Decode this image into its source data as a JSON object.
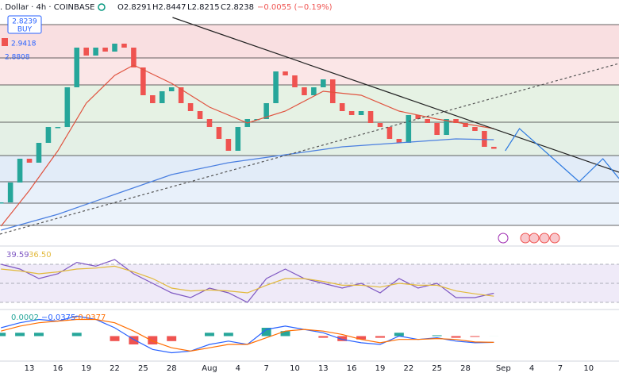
{
  "chart_data": [
    {
      "type": "candlestick",
      "title": ". Dollar · 4h · COINBASE",
      "ohlc_labels": [
        "O2.8291",
        "H2.8447",
        "L2.8215",
        "C2.8238",
        "−0.0055 (−0.19%)"
      ],
      "badges": [
        "2.8239",
        "BUY",
        "2.9418",
        "2.8808"
      ],
      "xlim": [
        9.9,
        75.2
      ],
      "ylim": [
        2.35,
        3.49
      ],
      "levels": [
        3.446,
        3.278,
        3.142,
        2.954,
        2.786,
        2.654,
        2.546,
        2.434
      ],
      "zone_colors": [
        "#f9dfe1",
        "#fbe6e7",
        "#e6f2e4",
        "#e4f0e6",
        "#e2ecf8",
        "#e8f0fa",
        "#ecf3fb"
      ],
      "up_color": "#26a69a",
      "down_color": "#ef5350",
      "series": [
        {
          "role": "price",
          "color": "#26a69a",
          "x": [
            10,
            11,
            12,
            13,
            14,
            15,
            16,
            17,
            18,
            19,
            20,
            21,
            22,
            23,
            24,
            25,
            26,
            27,
            28,
            29,
            30,
            31,
            32,
            33,
            34,
            35,
            36,
            37,
            38,
            39,
            40,
            41,
            42,
            43,
            44,
            45,
            46,
            47,
            48,
            49,
            50,
            51,
            52,
            53,
            54,
            55,
            56,
            57,
            58,
            59,
            60,
            61,
            62
          ],
          "values": [
            2.55,
            2.65,
            2.77,
            2.75,
            2.85,
            2.93,
            2.93,
            3.13,
            3.33,
            3.29,
            3.33,
            3.31,
            3.35,
            3.33,
            3.23,
            3.09,
            3.05,
            3.11,
            3.13,
            3.05,
            3.01,
            2.97,
            2.93,
            2.87,
            2.81,
            2.93,
            2.97,
            2.97,
            3.05,
            3.21,
            3.19,
            3.13,
            3.09,
            3.13,
            3.17,
            3.05,
            3.01,
            2.99,
            3.01,
            2.95,
            2.93,
            2.87,
            2.85,
            2.99,
            2.97,
            2.95,
            2.89,
            2.97,
            2.95,
            2.93,
            2.91,
            2.83,
            2.82
          ]
        },
        {
          "role": "line",
          "color": "#e0533f",
          "dash": "",
          "x": [
            10,
            13,
            16,
            19,
            22,
            24,
            28,
            32,
            36,
            40,
            44,
            48,
            52,
            56,
            60,
            62
          ],
          "values": [
            2.43,
            2.61,
            2.81,
            3.05,
            3.19,
            3.242,
            3.15,
            3.03,
            2.95,
            3.01,
            3.11,
            3.09,
            3.01,
            2.97,
            2.938,
            2.922
          ]
        },
        {
          "role": "line",
          "color": "#4a7fe0",
          "dash": "",
          "x": [
            10,
            16,
            22,
            28,
            34,
            40,
            46,
            52,
            58,
            62
          ],
          "values": [
            2.41,
            2.49,
            2.59,
            2.69,
            2.75,
            2.79,
            2.83,
            2.85,
            2.87,
            2.866
          ]
        },
        {
          "role": "line",
          "color": "#222222",
          "dash": "",
          "x": [
            28.1,
            75.2
          ],
          "values": [
            3.482,
            2.702
          ]
        },
        {
          "role": "line",
          "color": "#555555",
          "dash": "3 3",
          "x": [
            9.9,
            75.2
          ],
          "values": [
            2.39,
            3.25
          ]
        },
        {
          "role": "line",
          "color": "#2f7be0",
          "dash": "",
          "x": [
            63.2,
            64.7,
            71.0,
            73.5,
            75.2
          ],
          "values": [
            2.81,
            2.922,
            2.654,
            2.77,
            2.67
          ]
        }
      ]
    },
    {
      "type": "line",
      "legend_labels": [
        "39.59",
        "36.50"
      ],
      "xlim": [
        9.9,
        75.2
      ],
      "ylim": [
        22.5,
        87.5
      ],
      "bands": [
        70,
        50,
        30
      ],
      "band_fill": "#efeaf8",
      "x": [
        10,
        12,
        14,
        16,
        18,
        20,
        22,
        24,
        26,
        28,
        30,
        32,
        34,
        36,
        38,
        40,
        42,
        44,
        46,
        48,
        50,
        52,
        54,
        56,
        58,
        60,
        62
      ],
      "series": [
        {
          "color": "#7e57c2",
          "values": [
            70,
            65,
            55,
            60,
            72,
            68,
            75,
            60,
            50,
            40,
            35,
            45,
            40,
            30,
            55,
            65,
            55,
            50,
            45,
            50,
            40,
            55,
            45,
            50,
            35,
            35,
            39.59
          ]
        },
        {
          "color": "#e2b93b",
          "values": [
            65,
            63,
            60,
            62,
            65,
            66,
            68,
            62,
            55,
            45,
            42,
            43,
            42,
            40,
            48,
            55,
            55,
            52,
            48,
            48,
            46,
            50,
            48,
            48,
            42,
            39,
            36.5
          ]
        }
      ]
    },
    {
      "type": "macd",
      "legend_labels": [
        "0.0002",
        "−0.0375",
        "−0.0377"
      ],
      "xlim": [
        9.9,
        75.2
      ],
      "ylim": [
        -0.15,
        0.15
      ],
      "x": [
        10,
        12,
        14,
        16,
        18,
        20,
        22,
        24,
        26,
        28,
        30,
        32,
        34,
        36,
        38,
        40,
        42,
        44,
        46,
        48,
        50,
        52,
        54,
        56,
        58,
        60,
        62
      ],
      "histogram": {
        "up_color": "#26a69a",
        "down_color": "#ef5350",
        "values": [
          0.02,
          0.02,
          0.02,
          0,
          0.02,
          0,
          -0.03,
          -0.05,
          -0.05,
          -0.03,
          0,
          0.02,
          0.02,
          0,
          0.05,
          0.03,
          0,
          -0.01,
          -0.03,
          -0.02,
          -0.01,
          0.02,
          0,
          0.005,
          -0.01,
          -0.005,
          0.0002
        ]
      },
      "series": [
        {
          "color": "#2962ff",
          "values": [
            0.05,
            0.08,
            0.1,
            0.09,
            0.12,
            0.1,
            0.05,
            -0.02,
            -0.08,
            -0.1,
            -0.09,
            -0.05,
            -0.03,
            -0.05,
            0.04,
            0.06,
            0.04,
            0.02,
            -0.02,
            -0.04,
            -0.05,
            0,
            -0.02,
            -0.01,
            -0.03,
            -0.04,
            -0.0375
          ]
        },
        {
          "color": "#ff6d00",
          "values": [
            0.03,
            0.06,
            0.08,
            0.09,
            0.1,
            0.1,
            0.08,
            0.03,
            -0.03,
            -0.07,
            -0.09,
            -0.07,
            -0.05,
            -0.05,
            -0.01,
            0.03,
            0.04,
            0.03,
            0.01,
            -0.02,
            -0.04,
            -0.02,
            -0.02,
            -0.015,
            -0.02,
            -0.035,
            -0.0377
          ]
        }
      ],
      "xticks": [
        13,
        16,
        19,
        22,
        25,
        28,
        {
          "value": 32,
          "label": "Aug"
        },
        {
          "value": 35,
          "label": "4"
        },
        {
          "value": 38,
          "label": "7"
        },
        {
          "value": 41,
          "label": "10"
        },
        {
          "value": 44,
          "label": "13"
        },
        {
          "value": 47,
          "label": "16"
        },
        {
          "value": 50,
          "label": "19"
        },
        {
          "value": 53,
          "label": "22"
        },
        {
          "value": 56,
          "label": "25"
        },
        {
          "value": 59,
          "label": "28"
        },
        {
          "value": 63,
          "label": "Sep"
        },
        {
          "value": 66,
          "label": "4"
        },
        {
          "value": 69,
          "label": "7"
        },
        {
          "value": 72,
          "label": "10"
        }
      ]
    }
  ]
}
